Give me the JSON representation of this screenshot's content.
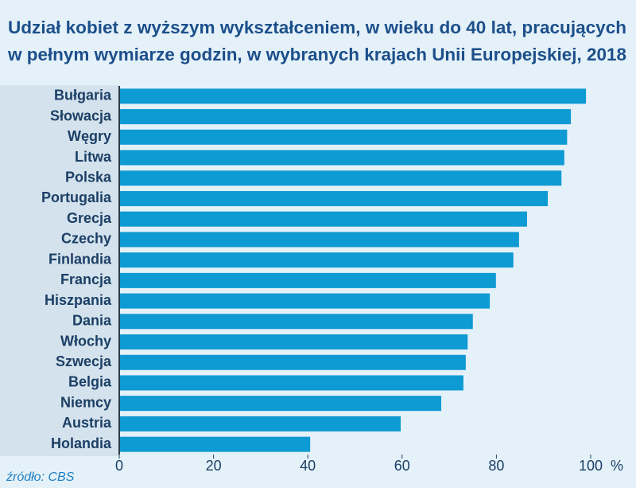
{
  "chart_data": {
    "type": "bar",
    "orientation": "horizontal",
    "title": [
      "Udział kobiet z wyższym wykształceniem, w wieku do 40 lat, pracujących",
      "w pełnym wymiarze godzin, w wybranych krajach Unii Europejskiej, 2018"
    ],
    "categories": [
      "Bułgaria",
      "Słowacja",
      "Węgry",
      "Litwa",
      "Polska",
      "Portugalia",
      "Grecja",
      "Czechy",
      "Finlandia",
      "Francja",
      "Hiszpania",
      "Dania",
      "Włochy",
      "Szwecja",
      "Belgia",
      "Niemcy",
      "Austria",
      "Holandia"
    ],
    "values": [
      99,
      95.8,
      95,
      94.4,
      93.8,
      90.9,
      86.5,
      84.8,
      83.6,
      79.9,
      78.6,
      75,
      73.9,
      73.5,
      73,
      68.3,
      59.7,
      40.5
    ],
    "color": "#0e9ad2",
    "xlim": [
      0,
      100
    ],
    "xticks": [
      0,
      20,
      40,
      60,
      80,
      100
    ],
    "x_label": "%",
    "source": "źródło: CBS"
  }
}
